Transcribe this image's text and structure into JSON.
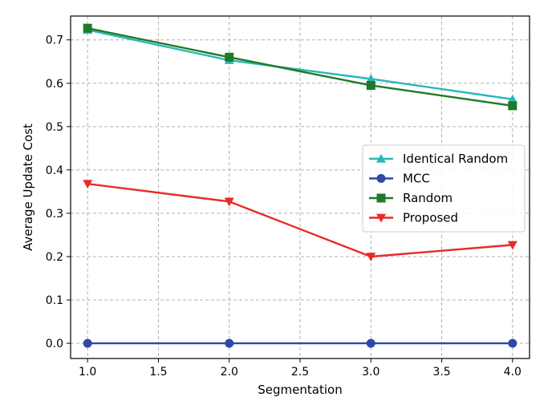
{
  "chart_data": {
    "type": "line",
    "title": "",
    "xlabel": "Segmentation",
    "ylabel": "Average Update Cost",
    "xlim": [
      0.88,
      4.12
    ],
    "ylim": [
      -0.035,
      0.755
    ],
    "xticks": [
      1.0,
      1.5,
      2.0,
      2.5,
      3.0,
      3.5,
      4.0
    ],
    "xtick_labels": [
      "1.0",
      "1.5",
      "2.0",
      "2.5",
      "3.0",
      "3.5",
      "4.0"
    ],
    "yticks": [
      0.0,
      0.1,
      0.2,
      0.3,
      0.4,
      0.5,
      0.6,
      0.7
    ],
    "ytick_labels": [
      "0.0",
      "0.1",
      "0.2",
      "0.3",
      "0.4",
      "0.5",
      "0.6",
      "0.7"
    ],
    "grid": true,
    "legend_position": "center-right",
    "x": [
      1.0,
      2.0,
      3.0,
      4.0
    ],
    "series": [
      {
        "name": "Identical Random",
        "values": [
          0.723,
          0.653,
          0.61,
          0.563
        ],
        "color": "#2ab7b7",
        "marker": "triangle-up"
      },
      {
        "name": "MCC",
        "values": [
          0.0,
          0.0,
          0.0,
          0.0
        ],
        "color": "#2f48a8",
        "marker": "circle"
      },
      {
        "name": "Random",
        "values": [
          0.727,
          0.66,
          0.595,
          0.548
        ],
        "color": "#1e7a28",
        "marker": "square"
      },
      {
        "name": "Proposed",
        "values": [
          0.368,
          0.327,
          0.2,
          0.227
        ],
        "color": "#e82a2a",
        "marker": "triangle-down"
      }
    ]
  }
}
